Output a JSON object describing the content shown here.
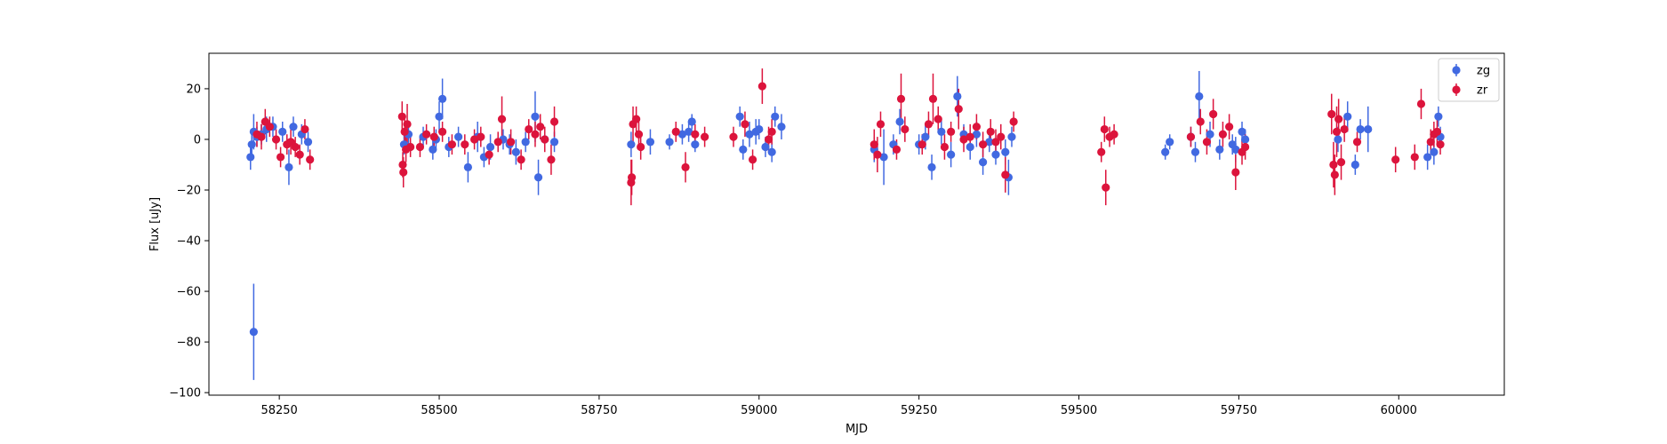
{
  "chart_data": {
    "type": "scatter",
    "xlabel": "MJD",
    "ylabel": "Flux [uJy]",
    "xlim": [
      58140,
      60165
    ],
    "ylim": [
      -101,
      34
    ],
    "xticks": [
      58250,
      58500,
      58750,
      59000,
      59250,
      59500,
      59750,
      60000
    ],
    "yticks": [
      -100,
      -80,
      -60,
      -40,
      -20,
      0,
      20
    ],
    "xtick_labels": [
      "58250",
      "58500",
      "58750",
      "59000",
      "59250",
      "59500",
      "59750",
      "60000"
    ],
    "ytick_labels": [
      "−100",
      "−80",
      "−60",
      "−40",
      "−20",
      "0",
      "20"
    ],
    "grid": false,
    "legend_position": "top-right",
    "series": [
      {
        "name": "zg",
        "color": "#4169e1",
        "points": [
          [
            58205,
            -7,
            5
          ],
          [
            58207,
            -2,
            5
          ],
          [
            58210,
            3,
            7
          ],
          [
            58215,
            1,
            4
          ],
          [
            58222,
            2,
            4
          ],
          [
            58230,
            4,
            5
          ],
          [
            58240,
            5,
            4
          ],
          [
            58255,
            3,
            4
          ],
          [
            58265,
            -11,
            7
          ],
          [
            58272,
            5,
            4
          ],
          [
            58285,
            2,
            4
          ],
          [
            58295,
            -1,
            4
          ],
          [
            58210,
            -76,
            19
          ],
          [
            58445,
            -2,
            4
          ],
          [
            58452,
            2,
            5
          ],
          [
            58475,
            1,
            4
          ],
          [
            58490,
            -4,
            4
          ],
          [
            58495,
            0,
            4
          ],
          [
            58500,
            9,
            6
          ],
          [
            58505,
            16,
            8
          ],
          [
            58515,
            -3,
            4
          ],
          [
            58530,
            1,
            4
          ],
          [
            58545,
            -11,
            6
          ],
          [
            58560,
            1,
            6
          ],
          [
            58570,
            -7,
            4
          ],
          [
            58580,
            -3,
            5
          ],
          [
            58600,
            0,
            4
          ],
          [
            58610,
            -2,
            4
          ],
          [
            58620,
            -5,
            5
          ],
          [
            58635,
            -1,
            4
          ],
          [
            58650,
            9,
            10
          ],
          [
            58655,
            -15,
            7
          ],
          [
            58665,
            0,
            4
          ],
          [
            58680,
            -1,
            4
          ],
          [
            58800,
            -2,
            5
          ],
          [
            58830,
            -1,
            5
          ],
          [
            58860,
            -1,
            3
          ],
          [
            58880,
            2,
            4
          ],
          [
            58890,
            3,
            4
          ],
          [
            58895,
            7,
            3
          ],
          [
            58900,
            -2,
            3
          ],
          [
            58970,
            9,
            4
          ],
          [
            58975,
            -4,
            4
          ],
          [
            58985,
            2,
            5
          ],
          [
            58995,
            3,
            5
          ],
          [
            59000,
            4,
            4
          ],
          [
            59010,
            -3,
            4
          ],
          [
            59020,
            -5,
            4
          ],
          [
            59025,
            9,
            4
          ],
          [
            59035,
            5,
            5
          ],
          [
            59180,
            -4,
            5
          ],
          [
            59195,
            -7,
            11
          ],
          [
            59210,
            -2,
            4
          ],
          [
            59220,
            7,
            5
          ],
          [
            59250,
            -2,
            4
          ],
          [
            59260,
            1,
            5
          ],
          [
            59270,
            -11,
            5
          ],
          [
            59285,
            3,
            5
          ],
          [
            59300,
            -6,
            5
          ],
          [
            59310,
            17,
            8
          ],
          [
            59320,
            2,
            4
          ],
          [
            59330,
            -3,
            5
          ],
          [
            59340,
            2,
            5
          ],
          [
            59350,
            -9,
            5
          ],
          [
            59360,
            -1,
            4
          ],
          [
            59370,
            -6,
            4
          ],
          [
            59385,
            -5,
            5
          ],
          [
            59390,
            -15,
            7
          ],
          [
            59395,
            1,
            4
          ],
          [
            59635,
            -5,
            3
          ],
          [
            59642,
            -1,
            3
          ],
          [
            59675,
            1,
            4
          ],
          [
            59682,
            -5,
            4
          ],
          [
            59688,
            17,
            10
          ],
          [
            59705,
            2,
            5
          ],
          [
            59720,
            -4,
            4
          ],
          [
            59740,
            -2,
            4
          ],
          [
            59745,
            -4,
            5
          ],
          [
            59755,
            3,
            4
          ],
          [
            59760,
            0,
            4
          ],
          [
            59905,
            0,
            5
          ],
          [
            59920,
            9,
            6
          ],
          [
            59932,
            -10,
            4
          ],
          [
            59940,
            4,
            4
          ],
          [
            59952,
            4,
            9
          ],
          [
            60045,
            -7,
            5
          ],
          [
            60055,
            -5,
            5
          ],
          [
            60062,
            9,
            4
          ],
          [
            60065,
            1,
            4
          ]
        ]
      },
      {
        "name": "zr",
        "color": "#dc143c",
        "points": [
          [
            58215,
            2,
            5
          ],
          [
            58222,
            1,
            5
          ],
          [
            58228,
            7,
            5
          ],
          [
            58235,
            5,
            4
          ],
          [
            58245,
            0,
            4
          ],
          [
            58252,
            -7,
            4
          ],
          [
            58262,
            -2,
            4
          ],
          [
            58268,
            -1,
            5
          ],
          [
            58275,
            -3,
            4
          ],
          [
            58282,
            -6,
            4
          ],
          [
            58290,
            4,
            4
          ],
          [
            58298,
            -8,
            4
          ],
          [
            58442,
            9,
            6
          ],
          [
            58443,
            -10,
            5
          ],
          [
            58444,
            -13,
            6
          ],
          [
            58446,
            3,
            5
          ],
          [
            58448,
            -4,
            5
          ],
          [
            58450,
            6,
            8
          ],
          [
            58455,
            -3,
            4
          ],
          [
            58470,
            -3,
            4
          ],
          [
            58480,
            2,
            4
          ],
          [
            58492,
            1,
            4
          ],
          [
            58505,
            3,
            4
          ],
          [
            58520,
            -2,
            4
          ],
          [
            58540,
            -2,
            4
          ],
          [
            58555,
            0,
            4
          ],
          [
            58565,
            1,
            4
          ],
          [
            58578,
            -6,
            4
          ],
          [
            58592,
            -1,
            4
          ],
          [
            58598,
            8,
            9
          ],
          [
            58612,
            -1,
            5
          ],
          [
            58628,
            -8,
            4
          ],
          [
            58640,
            4,
            4
          ],
          [
            58650,
            2,
            5
          ],
          [
            58658,
            5,
            5
          ],
          [
            58665,
            0,
            5
          ],
          [
            58675,
            -8,
            6
          ],
          [
            58680,
            7,
            6
          ],
          [
            58800,
            -17,
            9
          ],
          [
            58801,
            -15,
            7
          ],
          [
            58803,
            6,
            7
          ],
          [
            58808,
            8,
            5
          ],
          [
            58812,
            2,
            5
          ],
          [
            58815,
            -3,
            5
          ],
          [
            58870,
            3,
            4
          ],
          [
            58885,
            -11,
            6
          ],
          [
            58900,
            2,
            4
          ],
          [
            58915,
            1,
            4
          ],
          [
            58960,
            1,
            4
          ],
          [
            58978,
            6,
            5
          ],
          [
            58990,
            -8,
            4
          ],
          [
            59005,
            21,
            7
          ],
          [
            59015,
            0,
            5
          ],
          [
            59020,
            3,
            5
          ],
          [
            59180,
            -2,
            6
          ],
          [
            59185,
            -6,
            7
          ],
          [
            59190,
            6,
            5
          ],
          [
            59215,
            -4,
            4
          ],
          [
            59222,
            16,
            10
          ],
          [
            59228,
            4,
            5
          ],
          [
            59255,
            -2,
            4
          ],
          [
            59265,
            6,
            5
          ],
          [
            59272,
            16,
            10
          ],
          [
            59280,
            8,
            5
          ],
          [
            59290,
            -3,
            5
          ],
          [
            59300,
            3,
            4
          ],
          [
            59312,
            12,
            8
          ],
          [
            59320,
            0,
            5
          ],
          [
            59330,
            1,
            5
          ],
          [
            59340,
            5,
            5
          ],
          [
            59350,
            -2,
            5
          ],
          [
            59362,
            3,
            5
          ],
          [
            59370,
            -1,
            5
          ],
          [
            59378,
            1,
            5
          ],
          [
            59385,
            -14,
            7
          ],
          [
            59398,
            7,
            4
          ],
          [
            59535,
            -5,
            4
          ],
          [
            59540,
            4,
            5
          ],
          [
            59542,
            -19,
            7
          ],
          [
            59548,
            1,
            4
          ],
          [
            59555,
            2,
            4
          ],
          [
            59675,
            1,
            4
          ],
          [
            59690,
            7,
            5
          ],
          [
            59700,
            -1,
            5
          ],
          [
            59710,
            10,
            6
          ],
          [
            59725,
            2,
            5
          ],
          [
            59735,
            5,
            5
          ],
          [
            59745,
            -13,
            7
          ],
          [
            59755,
            -5,
            5
          ],
          [
            59760,
            -3,
            5
          ],
          [
            59895,
            10,
            8
          ],
          [
            59898,
            -10,
            9
          ],
          [
            59900,
            -14,
            8
          ],
          [
            59903,
            3,
            10
          ],
          [
            59906,
            8,
            8
          ],
          [
            59910,
            -9,
            7
          ],
          [
            59915,
            4,
            5
          ],
          [
            59935,
            -1,
            4
          ],
          [
            59995,
            -8,
            5
          ],
          [
            60025,
            -7,
            5
          ],
          [
            60035,
            14,
            6
          ],
          [
            60050,
            -1,
            5
          ],
          [
            60055,
            2,
            5
          ],
          [
            60060,
            3,
            5
          ],
          [
            60065,
            -2,
            4
          ]
        ]
      }
    ]
  }
}
